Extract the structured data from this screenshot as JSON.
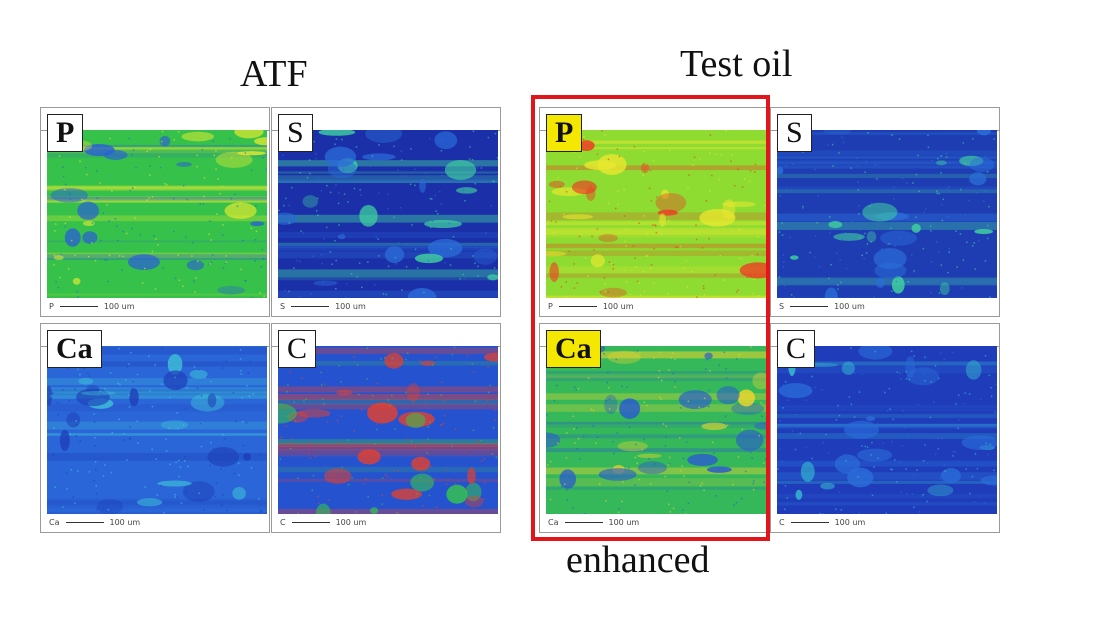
{
  "groups": [
    {
      "title": "ATF"
    },
    {
      "title": "Test oil"
    }
  ],
  "panels": [
    {
      "element": "P",
      "scale_label": "P",
      "scale_text": "100 um",
      "colors": {
        "base": "#36c24a",
        "spots": "#2a5fd6",
        "accent": "#e2e830"
      }
    },
    {
      "element": "S",
      "scale_label": "S",
      "scale_text": "100 um",
      "colors": {
        "base": "#1a2fa8",
        "spots": "#2b6ad8",
        "accent": "#3fd0a0"
      }
    },
    {
      "element": "Ca",
      "scale_label": "Ca",
      "scale_text": "100 um",
      "colors": {
        "base": "#2a66d8",
        "spots": "#1f3fb8",
        "accent": "#3fc8d8"
      }
    },
    {
      "element": "C",
      "scale_label": "C",
      "scale_text": "100 um",
      "colors": {
        "base": "#2553d0",
        "spots": "#35c64a",
        "accent": "#e8402a"
      }
    },
    {
      "element": "P",
      "scale_label": "P",
      "scale_text": "100 um",
      "colors": {
        "base": "#8edb32",
        "spots": "#ef3a24",
        "accent": "#e8e82e"
      }
    },
    {
      "element": "S",
      "scale_label": "S",
      "scale_text": "100 um",
      "colors": {
        "base": "#1e3db2",
        "spots": "#2b70da",
        "accent": "#40d2a0"
      }
    },
    {
      "element": "Ca",
      "scale_label": "Ca",
      "scale_text": "100 um",
      "colors": {
        "base": "#35b85a",
        "spots": "#2a5ad2",
        "accent": "#e8d62e"
      }
    },
    {
      "element": "C",
      "scale_label": "C",
      "scale_text": "100 um",
      "colors": {
        "base": "#1f3dba",
        "spots": "#2a6cd8",
        "accent": "#36c0d0"
      }
    }
  ],
  "highlight": {
    "caption": "enhanced",
    "color": "#e2151b"
  }
}
